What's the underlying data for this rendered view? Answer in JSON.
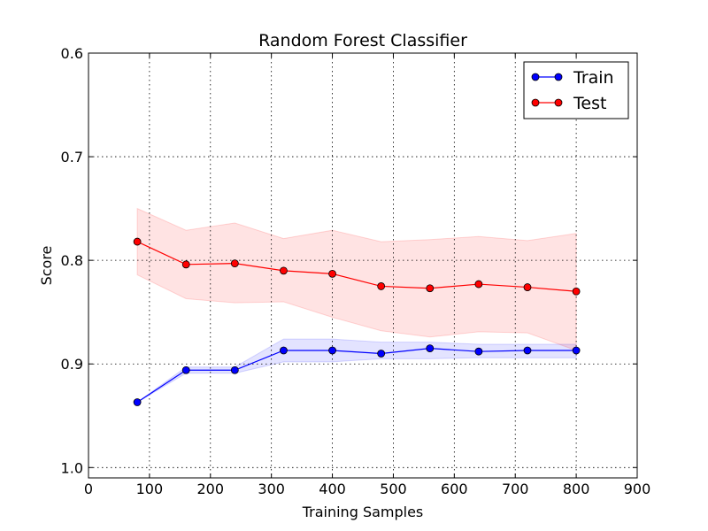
{
  "chart_data": {
    "type": "line",
    "title": "Random Forest Classifier",
    "xlabel": "Training Samples",
    "ylabel": "Score",
    "xlim": [
      0,
      900
    ],
    "ylim": [
      1.01,
      0.6
    ],
    "x_inverted": false,
    "y_inverted": true,
    "xticks": [
      0,
      100,
      200,
      300,
      400,
      500,
      600,
      700,
      800,
      900
    ],
    "xtick_labels": [
      "0",
      "100",
      "200",
      "300",
      "400",
      "500",
      "600",
      "700",
      "800",
      "900"
    ],
    "yticks": [
      0.6,
      0.7,
      0.8,
      0.9,
      1.0
    ],
    "ytick_labels": [
      "0.6",
      "0.7",
      "0.8",
      "0.9",
      "1.0"
    ],
    "grid": true,
    "legend_position": "top-right",
    "x": [
      80,
      160,
      240,
      320,
      400,
      480,
      560,
      640,
      720,
      800
    ],
    "series": [
      {
        "name": "Train",
        "color": "#0000ff",
        "band_color": "#0000ff",
        "values": [
          0.937,
          0.906,
          0.906,
          0.887,
          0.887,
          0.89,
          0.885,
          0.888,
          0.887,
          0.887
        ],
        "band_upper": [
          0.937,
          0.903,
          0.903,
          0.876,
          0.876,
          0.879,
          0.879,
          0.881,
          0.881,
          0.881
        ],
        "band_lower": [
          0.937,
          0.909,
          0.909,
          0.898,
          0.898,
          0.895,
          0.895,
          0.894,
          0.894,
          0.894
        ]
      },
      {
        "name": "Test",
        "color": "#ff0000",
        "band_color": "#ff0000",
        "values": [
          0.782,
          0.804,
          0.803,
          0.81,
          0.813,
          0.825,
          0.827,
          0.823,
          0.826,
          0.83
        ],
        "band_upper": [
          0.75,
          0.771,
          0.764,
          0.779,
          0.771,
          0.782,
          0.78,
          0.777,
          0.781,
          0.774
        ],
        "band_lower": [
          0.814,
          0.837,
          0.841,
          0.84,
          0.855,
          0.868,
          0.874,
          0.869,
          0.87,
          0.887
        ]
      }
    ]
  }
}
